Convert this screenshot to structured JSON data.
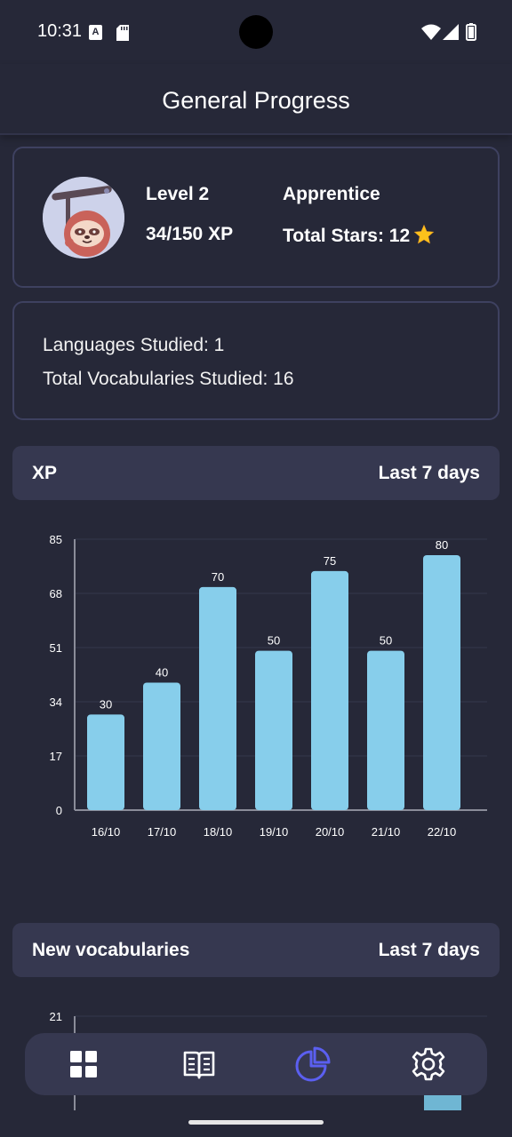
{
  "status_bar": {
    "time": "10:31",
    "keyboard_badge": "A"
  },
  "header": {
    "title": "General Progress"
  },
  "profile": {
    "level": "Level 2",
    "xp": "34/150 XP",
    "rank": "Apprentice",
    "stars": "Total Stars: 12"
  },
  "stats": {
    "languages": "Languages Studied: 1",
    "vocabularies": "Total Vocabularies Studied: 16"
  },
  "xp_section": {
    "title": "XP",
    "period": "Last 7 days"
  },
  "vocab_section": {
    "title": "New vocabularies",
    "period": "Last 7 days"
  },
  "chart_data": [
    {
      "type": "bar",
      "title": "",
      "xlabel": "",
      "ylabel": "",
      "categories": [
        "16/10",
        "17/10",
        "18/10",
        "19/10",
        "20/10",
        "21/10",
        "22/10"
      ],
      "values": [
        30,
        40,
        70,
        50,
        75,
        50,
        80
      ],
      "yticks": [
        0,
        17,
        34,
        51,
        68,
        85
      ],
      "ylim": [
        0,
        85
      ],
      "bar_color": "#87ceeb",
      "grid": true
    },
    {
      "type": "bar",
      "title": "",
      "xlabel": "",
      "ylabel": "",
      "yticks": [
        21
      ],
      "partially_visible": true,
      "bar_color": "#87ceeb"
    }
  ],
  "nav": {
    "items": [
      {
        "icon": "dashboard-icon",
        "active": false
      },
      {
        "icon": "book-icon",
        "active": false
      },
      {
        "icon": "pie-chart-icon",
        "active": true
      },
      {
        "icon": "gear-icon",
        "active": false
      }
    ],
    "active_color": "#5b5ff0",
    "inactive_color": "#ffffff"
  }
}
